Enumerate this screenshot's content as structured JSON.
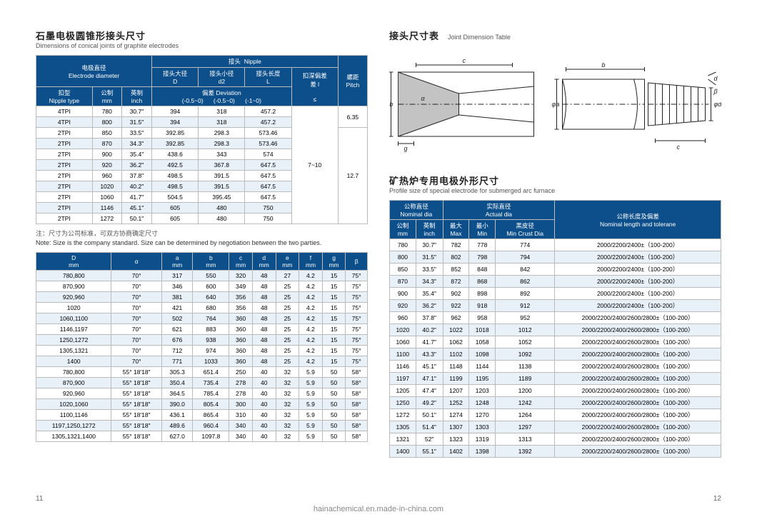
{
  "left": {
    "title_cn": "石墨电极圆锥形接头尺寸",
    "title_en": "Dimensions of conical joints of graphite electrodes",
    "table1": {
      "h_electrode_cn": "电极直径",
      "h_electrode_en": "Electrode diameter",
      "h_nipple_cn": "接头",
      "h_nipple_en": "Nipple",
      "h_D_cn": "接头大径",
      "h_D_en": "D",
      "h_d2_cn": "接头小径",
      "h_d2_en": "d2",
      "h_L_cn": "接头长度",
      "h_L_en": "L",
      "h_dev_cn": "扣深偏差",
      "h_dev_en": "差 l",
      "h_pitch_cn": "螺距",
      "h_pitch_en": "Pitch",
      "h_deviation_cn": "偏差",
      "h_deviation_en": "Deviation",
      "h_nipple_type_cn": "扣型",
      "h_nipple_type_en": "Nipple type",
      "h_mm_cn": "公制",
      "h_mm_en": "mm",
      "h_inch_cn": "英制",
      "h_inch_en": "inch",
      "tol_D": "(-0.5~0)",
      "tol_d2": "(-0.5~0)",
      "tol_L": "(-1~0)",
      "le": "≤",
      "rows": [
        {
          "t": "4TPI",
          "mm": "780",
          "in": "30.7\"",
          "D": "394",
          "d2": "318",
          "L": "457.2"
        },
        {
          "t": "4TPI",
          "mm": "800",
          "in": "31.5\"",
          "D": "394",
          "d2": "318",
          "L": "457.2"
        },
        {
          "t": "2TPI",
          "mm": "850",
          "in": "33.5\"",
          "D": "392.85",
          "d2": "298.3",
          "L": "573.46"
        },
        {
          "t": "2TPI",
          "mm": "870",
          "in": "34.3\"",
          "D": "392.85",
          "d2": "298.3",
          "L": "573.46"
        },
        {
          "t": "2TPI",
          "mm": "900",
          "in": "35.4\"",
          "D": "438.6",
          "d2": "343",
          "L": "574"
        },
        {
          "t": "2TPI",
          "mm": "920",
          "in": "36.2\"",
          "D": "492.5",
          "d2": "367.8",
          "L": "647.5"
        },
        {
          "t": "2TPI",
          "mm": "960",
          "in": "37.8\"",
          "D": "498.5",
          "d2": "391.5",
          "L": "647.5"
        },
        {
          "t": "2TPI",
          "mm": "1020",
          "in": "40.2\"",
          "D": "498.5",
          "d2": "391.5",
          "L": "647.5"
        },
        {
          "t": "2TPI",
          "mm": "1060",
          "in": "41.7\"",
          "D": "504.5",
          "d2": "395.45",
          "L": "647.5"
        },
        {
          "t": "2TPI",
          "mm": "1146",
          "in": "45.1\"",
          "D": "605",
          "d2": "480",
          "L": "750"
        },
        {
          "t": "2TPI",
          "mm": "1272",
          "in": "50.1\"",
          "D": "605",
          "d2": "480",
          "L": "750"
        }
      ],
      "dev_val": "7~10",
      "pitch1": "6.35",
      "pitch2": "12.7"
    },
    "note_cn": "注：尺寸为公司标准，可双方协商确定尺寸",
    "note_en": "Note: Size is the company standard. Size can be determined by negotiation between the two parties.",
    "table2": {
      "h": [
        "D mm",
        "α",
        "a mm",
        "b mm",
        "c mm",
        "d mm",
        "e mm",
        "f mm",
        "g mm",
        "β"
      ],
      "rows": [
        [
          "780,800",
          "70°",
          "317",
          "550",
          "320",
          "48",
          "27",
          "4.2",
          "15",
          "75°"
        ],
        [
          "870,900",
          "70°",
          "346",
          "600",
          "349",
          "48",
          "25",
          "4.2",
          "15",
          "75°"
        ],
        [
          "920,960",
          "70°",
          "381",
          "640",
          "356",
          "48",
          "25",
          "4.2",
          "15",
          "75°"
        ],
        [
          "1020",
          "70°",
          "421",
          "680",
          "356",
          "48",
          "25",
          "4.2",
          "15",
          "75°"
        ],
        [
          "1060,1100",
          "70°",
          "502",
          "764",
          "360",
          "48",
          "25",
          "4.2",
          "15",
          "75°"
        ],
        [
          "1146,1197",
          "70°",
          "621",
          "883",
          "360",
          "48",
          "25",
          "4.2",
          "15",
          "75°"
        ],
        [
          "1250,1272",
          "70°",
          "676",
          "938",
          "360",
          "48",
          "25",
          "4.2",
          "15",
          "75°"
        ],
        [
          "1305,1321",
          "70°",
          "712",
          "974",
          "360",
          "48",
          "25",
          "4.2",
          "15",
          "75°"
        ],
        [
          "1400",
          "70°",
          "771",
          "1033",
          "360",
          "48",
          "25",
          "4.2",
          "15",
          "75°"
        ],
        [
          "780,800",
          "55° 18'18\"",
          "305.3",
          "651.4",
          "250",
          "40",
          "32",
          "5.9",
          "50",
          "58°"
        ],
        [
          "870,900",
          "55° 18'18\"",
          "350.4",
          "735.4",
          "278",
          "40",
          "32",
          "5.9",
          "50",
          "58°"
        ],
        [
          "920,960",
          "55° 18'18\"",
          "364.5",
          "785.4",
          "278",
          "40",
          "32",
          "5.9",
          "50",
          "58°"
        ],
        [
          "1020,1060",
          "55° 18'18\"",
          "390.0",
          "805.4",
          "300",
          "40",
          "32",
          "5.9",
          "50",
          "58°"
        ],
        [
          "1100,1146",
          "55° 18'18\"",
          "436.1",
          "865.4",
          "310",
          "40",
          "32",
          "5.9",
          "50",
          "58°"
        ],
        [
          "1197,1250,1272",
          "55° 18'18\"",
          "489.6",
          "960.4",
          "340",
          "40",
          "32",
          "5.9",
          "50",
          "58°"
        ],
        [
          "1305,1321,1400",
          "55° 18'18\"",
          "627.0",
          "1097.8",
          "340",
          "40",
          "32",
          "5.9",
          "50",
          "58°"
        ]
      ]
    }
  },
  "right": {
    "title1_cn": "接头尺寸表",
    "title1_en": "Joint Dimension Table",
    "diagram": {
      "c": "c",
      "d": "d",
      "a": "a",
      "b": "b",
      "g": "g",
      "alpha": "α",
      "beta": "β",
      "phib": "φb",
      "phia": "φa",
      "phid": "φd"
    },
    "title2_cn": "矿热炉专用电极外形尺寸",
    "title2_en": "Profile size of special electrode for submerged arc furnace",
    "table3": {
      "h_nom_cn": "公称直径",
      "h_nom_en": "Nominal dia",
      "h_act_cn": "实际直径",
      "h_act_en": "Actual dia",
      "h_len_cn": "公称长度及偏差",
      "h_len_en": "Nominal length and tolerane",
      "h_mm_cn": "公制",
      "h_mm_en": "mm",
      "h_inch_cn": "英制",
      "h_inch_en": "inch",
      "h_max_cn": "最大",
      "h_max_en": "Max",
      "h_min_cn": "最小",
      "h_min_en": "Min",
      "h_crust_cn": "黑皮径",
      "h_crust_en": "Min Crust Dia",
      "rows": [
        {
          "mm": "780",
          "in": "30.7\"",
          "max": "782",
          "min": "778",
          "cr": "774",
          "len": "2000/2200/2400±（100-200）"
        },
        {
          "mm": "800",
          "in": "31.5\"",
          "max": "802",
          "min": "798",
          "cr": "794",
          "len": "2000/2200/2400±（100-200）"
        },
        {
          "mm": "850",
          "in": "33.5\"",
          "max": "852",
          "min": "848",
          "cr": "842",
          "len": "2000/2200/2400±（100-200）"
        },
        {
          "mm": "870",
          "in": "34.3\"",
          "max": "872",
          "min": "868",
          "cr": "862",
          "len": "2000/2200/2400±（100-200）"
        },
        {
          "mm": "900",
          "in": "35.4\"",
          "max": "902",
          "min": "898",
          "cr": "892",
          "len": "2000/2200/2400±（100-200）"
        },
        {
          "mm": "920",
          "in": "36.2\"",
          "max": "922",
          "min": "918",
          "cr": "912",
          "len": "2000/2200/2400±（100-200）"
        },
        {
          "mm": "960",
          "in": "37.8\"",
          "max": "962",
          "min": "958",
          "cr": "952",
          "len": "2000/2200/2400/2600/2800±（100-200）"
        },
        {
          "mm": "1020",
          "in": "40.2\"",
          "max": "1022",
          "min": "1018",
          "cr": "1012",
          "len": "2000/2200/2400/2600/2800±（100-200）"
        },
        {
          "mm": "1060",
          "in": "41.7\"",
          "max": "1062",
          "min": "1058",
          "cr": "1052",
          "len": "2000/2200/2400/2600/2800±（100-200）"
        },
        {
          "mm": "1100",
          "in": "43.3\"",
          "max": "1102",
          "min": "1098",
          "cr": "1092",
          "len": "2000/2200/2400/2600/2800±（100-200）"
        },
        {
          "mm": "1146",
          "in": "45.1\"",
          "max": "1148",
          "min": "1144",
          "cr": "1138",
          "len": "2000/2200/2400/2600/2800±（100-200）"
        },
        {
          "mm": "1197",
          "in": "47.1\"",
          "max": "1199",
          "min": "1195",
          "cr": "1189",
          "len": "2000/2200/2400/2600/2800±（100-200）"
        },
        {
          "mm": "1205",
          "in": "47.4\"",
          "max": "1207",
          "min": "1203",
          "cr": "1200",
          "len": "2000/2200/2400/2600/2800±（100-200）"
        },
        {
          "mm": "1250",
          "in": "49.2\"",
          "max": "1252",
          "min": "1248",
          "cr": "1242",
          "len": "2000/2200/2400/2600/2800±（100-200）"
        },
        {
          "mm": "1272",
          "in": "50.1\"",
          "max": "1274",
          "min": "1270",
          "cr": "1264",
          "len": "2000/2200/2400/2600/2800±（100-200）"
        },
        {
          "mm": "1305",
          "in": "51.4\"",
          "max": "1307",
          "min": "1303",
          "cr": "1297",
          "len": "2000/2200/2400/2600/2800±（100-200）"
        },
        {
          "mm": "1321",
          "in": "52\"",
          "max": "1323",
          "min": "1319",
          "cr": "1313",
          "len": "2000/2200/2400/2600/2800±（100-200）"
        },
        {
          "mm": "1400",
          "in": "55.1\"",
          "max": "1402",
          "min": "1398",
          "cr": "1392",
          "len": "2000/2200/2400/2600/2800±（100-200）"
        }
      ]
    }
  },
  "page_left": "11",
  "page_right": "12",
  "watermark": "hainachemical.en.made-in-china.com"
}
